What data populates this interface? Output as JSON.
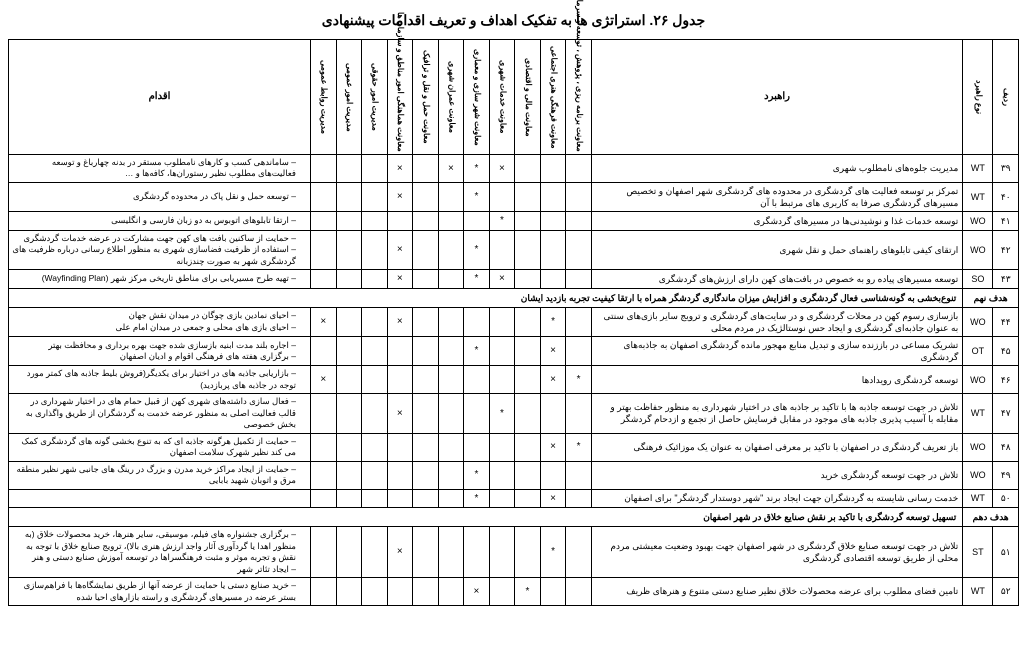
{
  "title": "جدول ۲۶. استراتژی ها به تفکیک اهداف و تعریف اقدامات پیشنهادی",
  "headers": {
    "radif": "ردیف",
    "type": "نوع راهبرد",
    "strategy": "راهبرد",
    "action": "اقدام",
    "deps": [
      "معاونت برنامه ریزی ، پژوهش ، توسعه و سرمایه انسانی",
      "معاونت فرهنگی هنری اجتماعی",
      "معاونت مالی و اقتصادی",
      "معاونت خدمات شهری",
      "معاونت شهر سازی و معماری",
      "معاونت عمران شهری",
      "معاونت حمل و نقل و ترافیک",
      "معاونت هماهنگی امور مناطق و سازمان ها",
      "مدیریت امور حقوقی",
      "مدیریت امور عمومی",
      "مدیریت روابط عمومی"
    ]
  },
  "marks": {
    "x": "×",
    "s": "*"
  },
  "goals": {
    "g9": {
      "label": "هدف نهم",
      "text": "تنوع‌بخشی به گونه‌شناسی فعال گردشگری و افزایش میزان ماندگاری گردشگر همراه با ارتقا کیفیت تجربه بازدید ایشان"
    },
    "g10": {
      "label": "هدف دهم",
      "text": "تسهیل توسعه گردشگری با تاکید بر نقش صنایع خلاق در شهر اصفهان"
    }
  },
  "rows": [
    {
      "n": "۳۹",
      "t": "WT",
      "s": "مدیریت جلوه‌های نامطلوب شهری",
      "d": [
        "",
        "",
        "",
        "x",
        "s",
        "x",
        "",
        "x",
        "",
        "",
        ""
      ],
      "a": [
        "ساماندهی کسب و کارهای نامطلوب مستقر در بدنه چهارباغ و توسعه فعالیت‌های مطلوب نظیر رستوران‌ها، کافه‌ها و …"
      ]
    },
    {
      "n": "۴۰",
      "t": "WT",
      "s": "تمرکز بر توسعه فعالیت های گردشگری در محدوده های گردشگری شهر اصفهان و تخصیص مسیرهای گردشگری صرفا به کاربری های مرتبط با آن",
      "d": [
        "",
        "",
        "",
        "",
        "s",
        "",
        "",
        "x",
        "",
        "",
        ""
      ],
      "a": [
        "توسعه حمل و نقل پاک در محدوده گردشگری"
      ]
    },
    {
      "n": "۴۱",
      "t": "WO",
      "s": "توسعه خدمات غذا و نوشیدنی‌ها در مسیرهای گردشگری",
      "d": [
        "",
        "",
        "",
        "s",
        "",
        "",
        "",
        "",
        "",
        "",
        ""
      ],
      "a": [
        "ارتقا تابلوهای اتوبوس به دو زبان فارسی و انگلیسی"
      ]
    },
    {
      "n": "۴۲",
      "t": "WO",
      "s": "ارتقای کیفی تابلوهای راهنمای حمل و نقل شهری",
      "d": [
        "",
        "",
        "",
        "",
        "s",
        "",
        "",
        "x",
        "",
        "",
        ""
      ],
      "a": [
        "حمایت از ساکنین بافت های کهن جهت مشارکت در عرضه خدمات گردشگری",
        "استفاده از ظرفیت فضاسازی شهری به منظور اطلاع رسانی درباره ظرفیت های گردشگری شهر به صورت چندزبانه"
      ]
    },
    {
      "n": "۴۳",
      "t": "SO",
      "s": "توسعه مسیرهای پیاده رو به خصوص در بافت‌های کهن دارای ارزش‌های گردشگری",
      "d": [
        "",
        "",
        "",
        "x",
        "s",
        "",
        "",
        "x",
        "",
        "",
        ""
      ],
      "a": [
        "تهیه طرح مسیریابی برای مناطق تاریخی مرکز شهر (Wayfinding Plan)"
      ]
    },
    {
      "n": "۴۴",
      "t": "WO",
      "s": "بازسازی رسوم کهن در محلات گردشگری و در سایت‌های گردشگری و ترویج سایر بازی‌های سنتی به عنوان جاذبه‌ای گردشگری و ایجاد حس نوستالژیک در مردم محلی",
      "d": [
        "",
        "s",
        "",
        "",
        "",
        "",
        "",
        "x",
        "",
        "",
        "x"
      ],
      "a": [
        "احیای نمادین بازی چوگان در میدان نقش جهان",
        "احیای بازی های محلی و جمعی در میدان امام علی"
      ]
    },
    {
      "n": "۴۵",
      "t": "OT",
      "s": "تشریک مساعی در باززنده سازی و تبدیل منابع مهجور مانده گردشگری اصفهان به جاذبه‌های گردشگری",
      "d": [
        "",
        "x",
        "",
        "",
        "s",
        "",
        "",
        "",
        "",
        "",
        ""
      ],
      "a": [
        "اجاره بلند مدت ابنیه بازسازی شده جهت بهره برداری و محافظت بهتر",
        "برگزاری هفته های فرهنگی اقوام و ادیان اصفهان"
      ]
    },
    {
      "n": "۴۶",
      "t": "WO",
      "s": "توسعه گردشگری رویدادها",
      "d": [
        "s",
        "x",
        "",
        "",
        "",
        "",
        "",
        "",
        "",
        "",
        "x"
      ],
      "a": [
        "بازاریابی جاذبه های در اختیار برای یکدیگر(فروش بلیط جاذبه های کمتر مورد توجه در جاذبه های پربازدید)"
      ]
    },
    {
      "n": "۴۷",
      "t": "WT",
      "s": "تلاش در جهت توسعه جاذبه ها با تاکید بر جاذبه های در اختیار شهرداری به منظور حفاظت بهتر و مقابله با آسیب پذیری جاذبه های موجود در مقابل فرسایش حاصل از تجمع و ازدحام گردشگر",
      "d": [
        "",
        "",
        "",
        "s",
        "",
        "",
        "",
        "x",
        "",
        "",
        ""
      ],
      "a": [
        "فعال سازی داشته‌های شهری کهن از قبیل حمام های در اختیار شهرداری در قالب فعالیت اصلی به منظور عرضه خدمت به گردشگران از طریق واگذاری به بخش خصوصی"
      ]
    },
    {
      "n": "۴۸",
      "t": "WO",
      "s": "باز تعریف گردشگری در اصفهان با تاکید بر معرفی اصفهان به عنوان یک موزائیک فرهنگی",
      "d": [
        "s",
        "x",
        "",
        "",
        "",
        "",
        "",
        "",
        "",
        "",
        ""
      ],
      "a": [
        "حمایت از تکمیل هرگونه جاذبه ای که به تنوع بخشی گونه های گردشگری کمک می کند نظیر شهرک سلامت اصفهان"
      ]
    },
    {
      "n": "۴۹",
      "t": "WO",
      "s": "تلاش در جهت توسعه گردشگری خرید",
      "d": [
        "",
        "",
        "",
        "",
        "s",
        "",
        "",
        "",
        "",
        "",
        ""
      ],
      "a": [
        "حمایت از ایجاد مراکز خرید مدرن و بزرگ در رینگ های جانبی شهر نظیر منطقه مرق و اتوبان شهید بابایی"
      ]
    },
    {
      "n": "۵۰",
      "t": "WT",
      "s": "خدمت رسانی شایسته به گردشگران جهت ایجاد برند \"شهر دوستدار گردشگر\" برای اصفهان",
      "d": [
        "",
        "x",
        "",
        "",
        "s",
        "",
        "",
        "",
        "",
        "",
        ""
      ],
      "a": []
    },
    {
      "n": "۵۱",
      "t": "ST",
      "s": "تلاش در جهت توسعه صنایع خلاق گردشگری در شهر اصفهان جهت بهبود وضعیت معیشتی مردم محلی از طریق توسعه اقتصادی گردشگری",
      "d": [
        "",
        "s",
        "",
        "",
        "",
        "",
        "",
        "x",
        "",
        "",
        ""
      ],
      "a": [
        "برگزاری جشنواره های فیلم، موسیقی، سایر هنرها، خرید محصولات خلاق (به منظور اهدا یا گردآوری آثار واجد ارزش هنری بالا)، ترویج صنایع خلاق با توجه به نقش و تجربه موثر و مثبت فرهنگسراها در توسعه آموزش صنایع دستی و هنر",
        "ایجاد تئاتر شهر"
      ]
    },
    {
      "n": "۵۲",
      "t": "WT",
      "s": "تامین فضای مطلوب برای عرضه محصولات خلاق نظیر صنایع دستی متنوع و هنرهای ظریف",
      "d": [
        "",
        "",
        "s",
        "",
        "x",
        "",
        "",
        "",
        "",
        "",
        ""
      ],
      "a": [
        "خرید صنایع دستی یا حمایت از عرضه آنها از طریق نمایشگاه‌ها با فراهم‌سازی بستر عرضه در مسیرهای گردشگری و راسته بازارهای احیا شده"
      ]
    }
  ]
}
